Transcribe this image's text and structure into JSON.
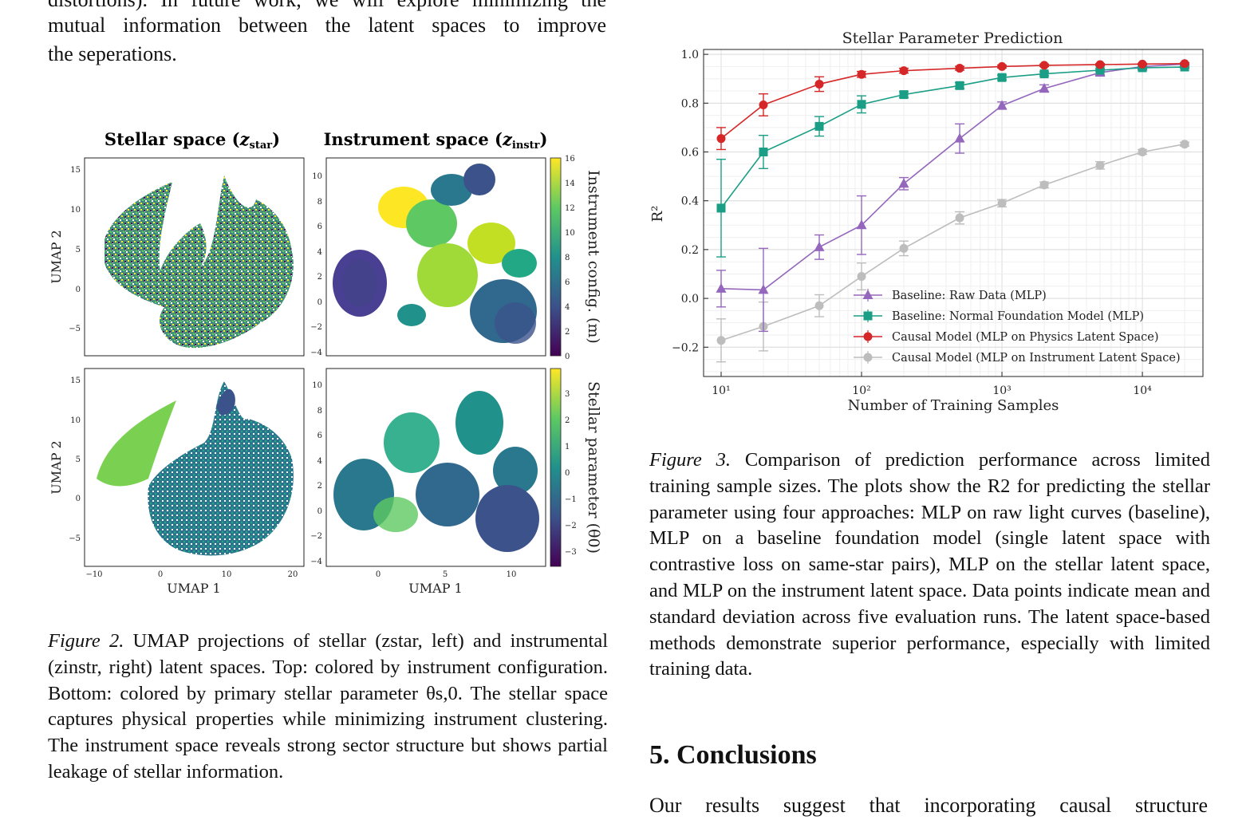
{
  "intro": {
    "line1": "distortions). In future work, we will explore minimizing the",
    "line2": "mutual information between the latent spaces to improve",
    "line3": "the seperations."
  },
  "figure2": {
    "panel_titles": {
      "stellar_main": "Stellar space (",
      "stellar_sub": "star",
      "instr_main": "Instrument space (",
      "instr_sub": "instr"
    },
    "ylabel": "UMAP 2",
    "xlabel": "UMAP 1",
    "stellar_yticks": [
      "15",
      "10",
      "5",
      "0",
      "−5"
    ],
    "instr_yticks": [
      "10",
      "8",
      "6",
      "4",
      "2",
      "0",
      "−2",
      "−4"
    ],
    "stellar_xticks": [
      "−10",
      "0",
      "10",
      "20"
    ],
    "instr_xticks": [
      "0",
      "5",
      "10"
    ],
    "colorbar_top": {
      "label": "Instrument config. (m)",
      "ticks": [
        "16",
        "14",
        "12",
        "10",
        "8",
        "6",
        "4",
        "2",
        "0"
      ]
    },
    "colorbar_bottom": {
      "label": "Stellar parameter (θ0)",
      "ticks": [
        "3",
        "2",
        "1",
        "0",
        "−1",
        "−2",
        "−3"
      ]
    },
    "caption": {
      "label": "Figure 2.",
      "text": "UMAP projections of stellar (zstar, left) and instrumental (zinstr, right) latent spaces. Top: colored by instrument configuration. Bottom: colored by primary stellar parameter θs,0. The stellar space captures physical properties while minimizing instrument clustering. The instrument space reveals strong sector structure but shows partial leakage of stellar information."
    },
    "colors": {
      "viridis_dark": "#440154",
      "viridis_mid": "#21918c",
      "viridis_light": "#fde725"
    }
  },
  "figure3": {
    "caption": {
      "label": "Figure 3.",
      "text": "Comparison of prediction performance across limited training sample sizes. The plots show the R2 for predicting the stellar parameter using four approaches: MLP on raw light curves (baseline), MLP on a baseline foundation model (single latent space with contrastive loss on same-star pairs), MLP on the stellar latent space, and MLP on the instrument latent space. Data points indicate mean and standard deviation across five evaluation runs. The latent space-based methods demonstrate superior performance, especially with limited training data."
    }
  },
  "chart_data": {
    "type": "line",
    "title": "Stellar Parameter Prediction",
    "xlabel": "Number of Training Samples",
    "ylabel": "R²",
    "x_scale": "log",
    "xlim": [
      7.5,
      27000
    ],
    "ylim": [
      -0.32,
      1.02
    ],
    "grid": true,
    "legend_position": "lower-right",
    "x": [
      10,
      20,
      50,
      100,
      200,
      500,
      1000,
      2000,
      5000,
      10000,
      20000
    ],
    "xtick_labels": [
      "10¹",
      "10²",
      "10³",
      "10⁴"
    ],
    "xtick_values": [
      10,
      100,
      1000,
      10000
    ],
    "ytick_labels": [
      "−0.2",
      "0.0",
      "0.2",
      "0.4",
      "0.6",
      "0.8",
      "1.0"
    ],
    "ytick_values": [
      -0.2,
      0.0,
      0.2,
      0.4,
      0.6,
      0.8,
      1.0
    ],
    "series": [
      {
        "name": "Baseline: Raw Data (MLP)",
        "color": "#9467bd",
        "marker": "triangle",
        "values": [
          0.04,
          0.035,
          0.21,
          0.3,
          0.47,
          0.655,
          0.79,
          0.86,
          0.925,
          0.95,
          0.96
        ],
        "errors": [
          0.075,
          0.17,
          0.05,
          0.12,
          0.025,
          0.06,
          0.015,
          0.015,
          0.01,
          0.008,
          0.006
        ]
      },
      {
        "name": "Baseline: Normal Foundation Model (MLP)",
        "color": "#1a9e86",
        "marker": "square",
        "values": [
          0.37,
          0.6,
          0.705,
          0.795,
          0.835,
          0.872,
          0.905,
          0.92,
          0.935,
          0.945,
          0.948
        ],
        "errors": [
          0.2,
          0.068,
          0.04,
          0.035,
          0.012,
          0.012,
          0.01,
          0.008,
          0.006,
          0.005,
          0.004
        ]
      },
      {
        "name": "Causal Model (MLP on Physics Latent Space)",
        "color": "#d62728",
        "marker": "circle",
        "values": [
          0.655,
          0.793,
          0.878,
          0.918,
          0.933,
          0.943,
          0.95,
          0.955,
          0.958,
          0.96,
          0.962
        ],
        "errors": [
          0.045,
          0.045,
          0.03,
          0.012,
          0.01,
          0.008,
          0.006,
          0.005,
          0.004,
          0.003,
          0.003
        ]
      },
      {
        "name": "Causal Model (MLP on Instrument Latent Space)",
        "color": "#bdbdbd",
        "marker": "circle",
        "values": [
          -0.172,
          -0.115,
          -0.03,
          0.09,
          0.205,
          0.33,
          0.39,
          0.465,
          0.545,
          0.6,
          0.632
        ],
        "errors": [
          0.088,
          0.1,
          0.045,
          0.055,
          0.03,
          0.025,
          0.015,
          0.012,
          0.015,
          0.01,
          0.008
        ]
      }
    ]
  },
  "section5": {
    "title": "5. Conclusions",
    "first_line": "Our results suggest that incorporating causal structure"
  }
}
